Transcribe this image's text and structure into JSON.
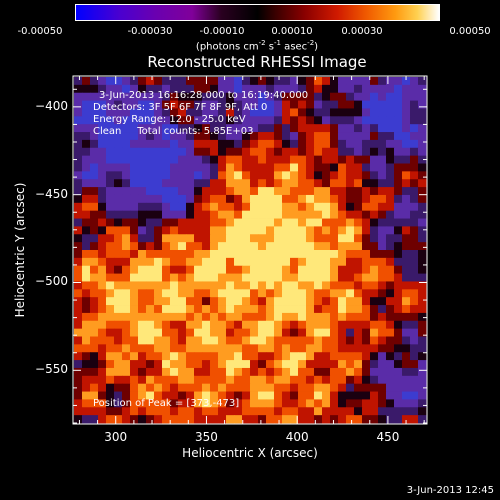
{
  "colorbar": {
    "ticks": [
      "-0.00050",
      "-0.00030",
      "-0.00010",
      "0.00010",
      "0.00030",
      "0.00050"
    ],
    "units_pre": "(photons cm",
    "units_exp1": "-2",
    "units_mid1": " s",
    "units_exp2": "-1",
    "units_mid2": " asec",
    "units_exp3": "-2",
    "units_post": ")"
  },
  "title": "Reconstructed RHESSI Image",
  "annotations": {
    "time": "3-Jun-2013 16:16:28.000 to 16:19:40.000",
    "detectors": "Detectors: 3F 5F 6F 7F 8F 9F, Att 0",
    "energy": "Energy Range: 12.0 - 25.0 keV",
    "clean": "Clean     Total counts: 5.85E+03",
    "peak": "Position of Peak = [373,-473]"
  },
  "footer": "3-Jun-2013 12:45",
  "chart_data": {
    "type": "heatmap",
    "title": "Reconstructed RHESSI Image",
    "xlabel": "Heliocentric X (arcsec)",
    "ylabel": "Heliocentric Y (arcsec)",
    "xlim": [
      277,
      471
    ],
    "ylim": [
      -580,
      -383
    ],
    "xticks": [
      300,
      350,
      400,
      450
    ],
    "yticks": [
      -400,
      -450,
      -500,
      -550
    ],
    "colorbar_range": [
      -0.0005,
      0.0005
    ],
    "peak": [
      373,
      -473
    ],
    "colors": {
      "neg_strong": "#3c3cd0",
      "neg": "#5a2ca8",
      "neg_weak": "#3a1a6a",
      "zero": "#1a0010",
      "pos_weak": "#6e0000",
      "pos": "#c01400",
      "pos_mid": "#f05000",
      "pos_high": "#ff9c20",
      "pos_peak": "#ffe87a"
    }
  }
}
